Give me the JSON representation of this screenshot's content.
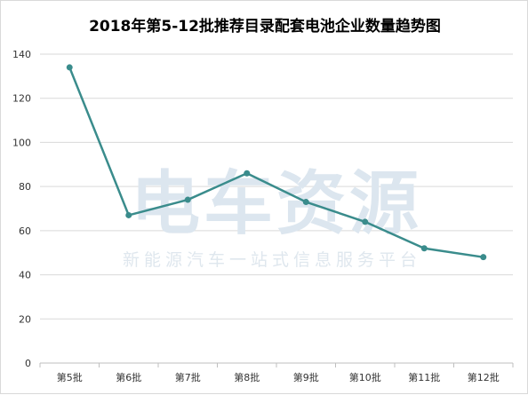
{
  "chart_data": {
    "type": "line",
    "title": "2018年第5-12批推荐目录配套电池企业数量趋势图",
    "categories": [
      "第5批",
      "第6批",
      "第7批",
      "第8批",
      "第9批",
      "第10批",
      "第11批",
      "第12批"
    ],
    "series": [
      {
        "values": [
          134,
          67,
          74,
          86,
          73,
          64,
          52,
          48
        ]
      }
    ],
    "ylim": [
      0,
      140
    ],
    "yticks": [
      0,
      20,
      40,
      60,
      80,
      100,
      120,
      140
    ],
    "grid": true,
    "line_color": "#3a8c8c",
    "xlabel": "",
    "ylabel": ""
  },
  "watermark": {
    "main": "电车资源",
    "sub": "新能源汽车一站式信息服务平台"
  }
}
